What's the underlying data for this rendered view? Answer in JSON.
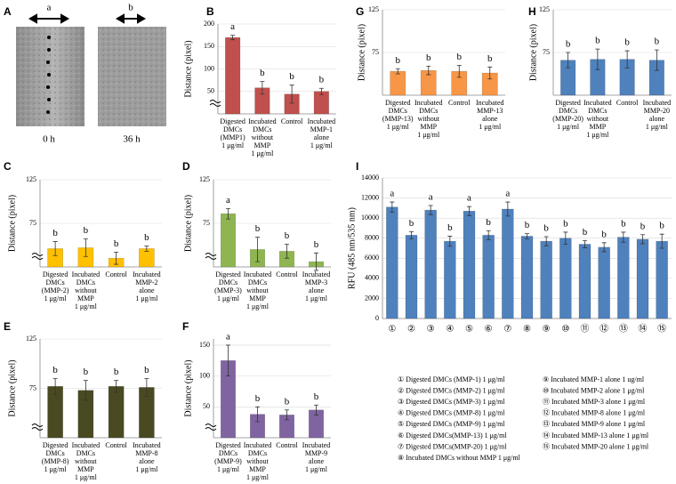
{
  "panel_a": {
    "panel_label": "A",
    "arrow_labels": [
      "a",
      "b"
    ],
    "captions": [
      "0 h",
      "36 h"
    ]
  },
  "chart_data": [
    {
      "type": "bar",
      "panel_label": "B",
      "y_label": "Distance (pixel)",
      "color": "#c0504d",
      "categories": [
        [
          "Digested",
          "DMCs",
          "(MMP1)",
          "1 μg/ml"
        ],
        [
          "Incubated",
          "DMCs",
          "without",
          "MMP",
          "1 μg/ml"
        ],
        [
          "Control"
        ],
        [
          "Incubated",
          "MMP-1",
          "alone",
          "1 μg/ml"
        ]
      ],
      "values": [
        170,
        58,
        44,
        50
      ],
      "errors": [
        5,
        14,
        20,
        7
      ],
      "annotations": [
        "a",
        "b",
        "b",
        "b"
      ],
      "ylim": [
        0,
        200
      ],
      "yticks": [
        50,
        100,
        150,
        200
      ],
      "grid": true,
      "axis_break": true
    },
    {
      "type": "bar",
      "panel_label": "C",
      "y_label": "Distance (pixel)",
      "color": "#ffc000",
      "categories": [
        [
          "Digested",
          "DMCs",
          "(MMP-2)",
          "1 μg/ml"
        ],
        [
          "Incubated",
          "DMCs",
          "without",
          "MMP",
          "1 μg/ml"
        ],
        [
          "Control"
        ],
        [
          "Incubated",
          "MMP-2",
          "alone",
          "1 μg/ml"
        ]
      ],
      "values": [
        46,
        47,
        35,
        46
      ],
      "errors": [
        8,
        10,
        7,
        3
      ],
      "annotations": [
        "b",
        "b",
        "b",
        "b"
      ],
      "ylim": [
        25,
        125
      ],
      "yticks": [
        75,
        125
      ],
      "grid": true,
      "axis_break": true
    },
    {
      "type": "bar",
      "panel_label": "D",
      "y_label": "Distance (pixel)",
      "color": "#8fb550",
      "categories": [
        [
          "Digested",
          "DMCs",
          "(MMP-3)",
          "1 μg/ml"
        ],
        [
          "Incubated",
          "DMCs",
          "without",
          "MMP",
          "1 μg/ml"
        ],
        [
          "Control"
        ],
        [
          "Incubated",
          "MMP-3",
          "alone",
          "1 μg/ml"
        ]
      ],
      "values": [
        86,
        45,
        43,
        31
      ],
      "errors": [
        6,
        14,
        8,
        10
      ],
      "annotations": [
        "a",
        "b",
        "b",
        "b"
      ],
      "ylim": [
        25,
        125
      ],
      "yticks": [
        75,
        125
      ],
      "grid": true,
      "axis_break": true
    },
    {
      "type": "bar",
      "panel_label": "E",
      "y_label": "Distance (pixel)",
      "color": "#4a4a22",
      "categories": [
        [
          "Digested",
          "DMCs",
          "(MMP-8)",
          "1 μg/ml"
        ],
        [
          "Incubated",
          "DMCs",
          "without",
          "MMP",
          "1 μg/ml"
        ],
        [
          "Control"
        ],
        [
          "Incubated",
          "MMP-8",
          "alone",
          "1 μg/ml"
        ]
      ],
      "values": [
        77,
        73,
        77,
        76
      ],
      "errors": [
        8,
        10,
        6,
        9
      ],
      "annotations": [
        "b",
        "b",
        "b",
        "b"
      ],
      "ylim": [
        25,
        125
      ],
      "yticks": [
        75,
        125
      ],
      "grid": true,
      "axis_break": true
    },
    {
      "type": "bar",
      "panel_label": "F",
      "y_label": "Distance (pixel)",
      "color": "#8064a2",
      "categories": [
        [
          "Digested",
          "DMCs",
          "(MMP-9)",
          "1 μg/ml"
        ],
        [
          "Incubated",
          "DMCs",
          "without",
          "MMP",
          "1 μg/ml"
        ],
        [
          "Control"
        ],
        [
          "Incubated",
          "MMP-9",
          "alone",
          "1 μg/ml"
        ]
      ],
      "values": [
        125,
        38,
        37,
        45
      ],
      "errors": [
        25,
        12,
        8,
        8
      ],
      "annotations": [
        "a",
        "b",
        "b",
        "b"
      ],
      "ylim": [
        0,
        160
      ],
      "yticks": [
        50,
        100,
        150
      ],
      "grid": true,
      "axis_break": true
    },
    {
      "type": "bar",
      "panel_label": "G",
      "y_label": "Distance (pixel)",
      "color": "#f79646",
      "categories": [
        [
          "Digested",
          "DMCs",
          "(MMP-13)",
          "1 μg/ml"
        ],
        [
          "Incubated",
          "DMCs",
          "without",
          "MMP",
          "1 μg/ml"
        ],
        [
          "Control"
        ],
        [
          "Incubated",
          "MMP-13",
          "alone",
          "1 μg/ml"
        ]
      ],
      "values": [
        53,
        54,
        53,
        51
      ],
      "errors": [
        3,
        5,
        7,
        7
      ],
      "annotations": [
        "b",
        "b",
        "b",
        "b"
      ],
      "ylim": [
        25,
        125
      ],
      "yticks": [
        75,
        125
      ],
      "grid": true,
      "axis_break": false
    },
    {
      "type": "bar",
      "panel_label": "H",
      "y_label": "Distance (pixel)",
      "color": "#4f81bd",
      "categories": [
        [
          "Digested",
          "DMCs",
          "(MMP-20)",
          "1 μg/ml"
        ],
        [
          "Incubated",
          "DMCs",
          "without",
          "MMP",
          "1 μg/ml"
        ],
        [
          "Control"
        ],
        [
          "Incubated",
          "MMP-20",
          "alone",
          "1 μg/ml"
        ]
      ],
      "values": [
        66,
        67,
        67,
        66
      ],
      "errors": [
        9,
        12,
        10,
        12
      ],
      "annotations": [
        "b",
        "b",
        "b",
        "b"
      ],
      "ylim": [
        25,
        125
      ],
      "yticks": [
        75,
        125
      ],
      "grid": true,
      "axis_break": false
    },
    {
      "type": "bar",
      "panel_label": "I",
      "y_label": "RFU (485 nm/535 nm)",
      "color": "#4f81bd",
      "categories": [
        [
          "①"
        ],
        [
          "②"
        ],
        [
          "③"
        ],
        [
          "④"
        ],
        [
          "⑤"
        ],
        [
          "⑥"
        ],
        [
          "⑦"
        ],
        [
          "⑧"
        ],
        [
          "⑨"
        ],
        [
          "⑩"
        ],
        [
          "⑪"
        ],
        [
          "⑫"
        ],
        [
          "⑬"
        ],
        [
          "⑭"
        ],
        [
          "⑮"
        ]
      ],
      "values": [
        11100,
        8300,
        10800,
        7700,
        10700,
        8300,
        10900,
        8200,
        7700,
        8000,
        7400,
        7100,
        8100,
        7900,
        7700
      ],
      "errors": [
        500,
        350,
        450,
        500,
        450,
        450,
        700,
        250,
        450,
        600,
        350,
        450,
        500,
        450,
        700
      ],
      "annotations": [
        "a",
        "b",
        "a",
        "b",
        "a",
        "b",
        "a",
        "b",
        "b",
        "b",
        "b",
        "b",
        "b",
        "b",
        "b"
      ],
      "ylim": [
        0,
        14000
      ],
      "yticks": [
        0,
        2000,
        4000,
        6000,
        8000,
        10000,
        12000,
        14000
      ],
      "grid": true,
      "axis_break": false,
      "legend_items": [
        "①   Digested DMCs (MMP-1) 1 μg/ml",
        "②   Digested DMCs (MMP-2) 1 μg/ml",
        "③   Digested DMCs (MMP-3) 1 μg/ml",
        "④   Digested DMCs (MMP-8) 1 μg/ml",
        "⑤   Digested DMCs (MMP-9) 1 μg/ml",
        "⑥   Digested DMCs(MMP-13) 1 μg/ml",
        "⑦   Digested DMCs(MMP-20) 1 μg/ml",
        "⑧   Incubated DMCs without MMP 1 μg/ml",
        "⑨ Incubated MMP-1 alone 1 ug/ml",
        "⑩ Incubated MMP-2 alone 1 μg/ml",
        "⑪ Incubated MMP-3 alone 1 μg/ml",
        "⑫ Incubated MMP-8 alone 1 μg/ml",
        "⑬ Incubated MMP-9 alone 1 μg/ml",
        "⑭ Incubated MMP-13 alone 1 μg/ml",
        "⑮ Incubated MMP-20 alone 1 μg/ml"
      ]
    }
  ]
}
